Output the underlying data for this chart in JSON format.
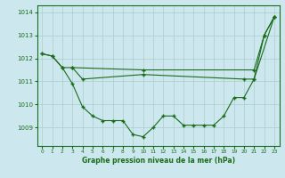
{
  "background_color": "#cce8ee",
  "grid_color": "#aacccc",
  "line_color": "#1a6b1a",
  "xlabel": "Graphe pression niveau de la mer (hPa)",
  "ylim": [
    1008.2,
    1014.3
  ],
  "xlim": [
    -0.5,
    23.5
  ],
  "yticks": [
    1009,
    1010,
    1011,
    1012,
    1013,
    1014
  ],
  "xticks": [
    0,
    1,
    2,
    3,
    4,
    5,
    6,
    7,
    8,
    9,
    10,
    11,
    12,
    13,
    14,
    15,
    16,
    17,
    18,
    19,
    20,
    21,
    22,
    23
  ],
  "line1_x": [
    0,
    1,
    2,
    3,
    10,
    21,
    22,
    23
  ],
  "line1_y": [
    1012.2,
    1012.1,
    1011.6,
    1011.6,
    1011.5,
    1011.5,
    1013.0,
    1013.8
  ],
  "line2_x": [
    0,
    1,
    2,
    3,
    4,
    5,
    6,
    7,
    8,
    9,
    10,
    11,
    12,
    13,
    14,
    15,
    16,
    17,
    18,
    19,
    20,
    21,
    22,
    23
  ],
  "line2_y": [
    1012.2,
    1012.1,
    1011.6,
    1010.9,
    1009.9,
    1009.5,
    1009.3,
    1009.3,
    1009.3,
    1008.7,
    1008.6,
    1009.0,
    1009.5,
    1009.5,
    1009.1,
    1009.1,
    1009.1,
    1009.1,
    1009.5,
    1010.3,
    1010.3,
    1011.1,
    1013.0,
    1013.8
  ],
  "line3_x": [
    3,
    4,
    10,
    20,
    21,
    23
  ],
  "line3_y": [
    1011.6,
    1011.1,
    1011.3,
    1011.1,
    1011.1,
    1013.8
  ]
}
